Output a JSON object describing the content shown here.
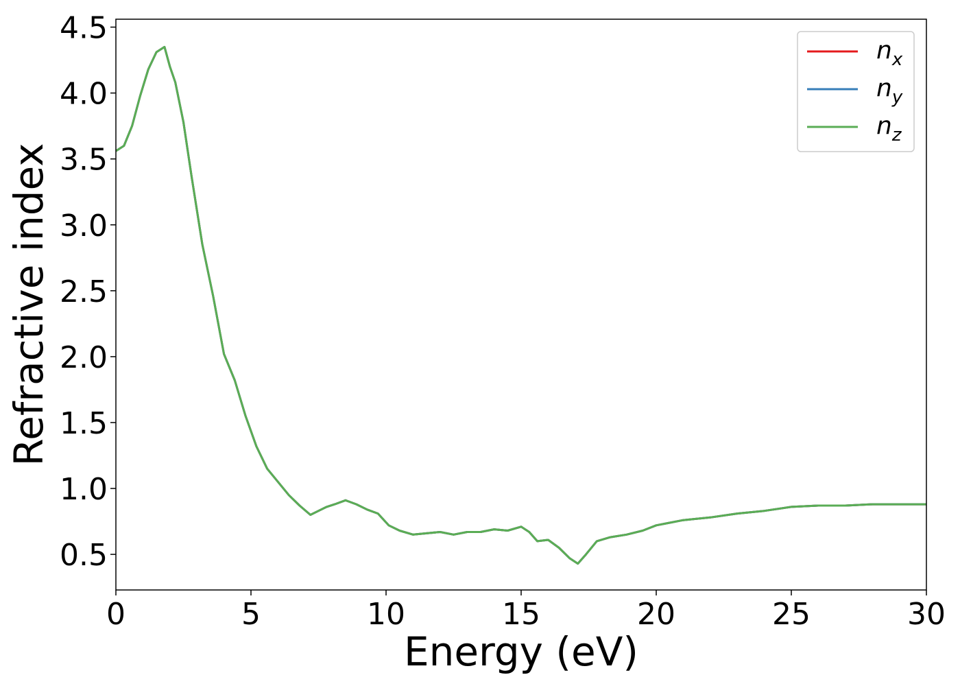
{
  "chart_data": {
    "type": "line",
    "xlabel": "Energy (eV)",
    "ylabel": "Refractive index",
    "xlim": [
      0,
      30
    ],
    "ylim": [
      0.23,
      4.56
    ],
    "xticks": [
      0,
      5,
      10,
      15,
      20,
      25,
      30
    ],
    "yticks": [
      0.5,
      1.0,
      1.5,
      2.0,
      2.5,
      3.0,
      3.5,
      4.0,
      4.5
    ],
    "grid": false,
    "legend_position": "top-right",
    "series": [
      {
        "name": "n",
        "subscript": "x",
        "color": "#e41a1c",
        "x": [
          0,
          0.3,
          0.6,
          0.9,
          1.2,
          1.5,
          1.8,
          2.0,
          2.2,
          2.5,
          2.8,
          3.2,
          3.6,
          4.0,
          4.4,
          4.8,
          5.2,
          5.6,
          6.0,
          6.4,
          6.8,
          7.2,
          7.5,
          7.8,
          8.1,
          8.5,
          8.9,
          9.3,
          9.7,
          10.1,
          10.5,
          11.0,
          11.5,
          12.0,
          12.5,
          13.0,
          13.5,
          14.0,
          14.5,
          15.0,
          15.3,
          15.6,
          16.0,
          16.4,
          16.8,
          17.1,
          17.4,
          17.8,
          18.3,
          18.9,
          19.5,
          20.0,
          20.5,
          21.0,
          22.0,
          23.0,
          24.0,
          25.0,
          26.0,
          27.0,
          28.0,
          29.0,
          30.0
        ],
        "y": [
          3.56,
          3.6,
          3.75,
          3.98,
          4.18,
          4.31,
          4.35,
          4.2,
          4.08,
          3.78,
          3.37,
          2.85,
          2.46,
          2.02,
          1.82,
          1.55,
          1.32,
          1.15,
          1.05,
          0.95,
          0.87,
          0.8,
          0.83,
          0.86,
          0.88,
          0.91,
          0.88,
          0.84,
          0.81,
          0.72,
          0.68,
          0.65,
          0.66,
          0.67,
          0.65,
          0.67,
          0.67,
          0.69,
          0.68,
          0.71,
          0.67,
          0.6,
          0.61,
          0.55,
          0.47,
          0.43,
          0.5,
          0.6,
          0.63,
          0.65,
          0.68,
          0.72,
          0.74,
          0.76,
          0.78,
          0.81,
          0.83,
          0.86,
          0.87,
          0.87,
          0.88,
          0.88,
          0.88
        ]
      },
      {
        "name": "n",
        "subscript": "y",
        "color": "#377eb8",
        "x": [
          0,
          0.3,
          0.6,
          0.9,
          1.2,
          1.5,
          1.8,
          2.0,
          2.2,
          2.5,
          2.8,
          3.2,
          3.6,
          4.0,
          4.4,
          4.8,
          5.2,
          5.6,
          6.0,
          6.4,
          6.8,
          7.2,
          7.5,
          7.8,
          8.1,
          8.5,
          8.9,
          9.3,
          9.7,
          10.1,
          10.5,
          11.0,
          11.5,
          12.0,
          12.5,
          13.0,
          13.5,
          14.0,
          14.5,
          15.0,
          15.3,
          15.6,
          16.0,
          16.4,
          16.8,
          17.1,
          17.4,
          17.8,
          18.3,
          18.9,
          19.5,
          20.0,
          20.5,
          21.0,
          22.0,
          23.0,
          24.0,
          25.0,
          26.0,
          27.0,
          28.0,
          29.0,
          30.0
        ],
        "y": [
          3.56,
          3.6,
          3.75,
          3.98,
          4.18,
          4.31,
          4.35,
          4.2,
          4.08,
          3.78,
          3.37,
          2.85,
          2.46,
          2.02,
          1.82,
          1.55,
          1.32,
          1.15,
          1.05,
          0.95,
          0.87,
          0.8,
          0.83,
          0.86,
          0.88,
          0.91,
          0.88,
          0.84,
          0.81,
          0.72,
          0.68,
          0.65,
          0.66,
          0.67,
          0.65,
          0.67,
          0.67,
          0.69,
          0.68,
          0.71,
          0.67,
          0.6,
          0.61,
          0.55,
          0.47,
          0.43,
          0.5,
          0.6,
          0.63,
          0.65,
          0.68,
          0.72,
          0.74,
          0.76,
          0.78,
          0.81,
          0.83,
          0.86,
          0.87,
          0.87,
          0.88,
          0.88,
          0.88
        ]
      },
      {
        "name": "n",
        "subscript": "z",
        "color": "#5aad55",
        "x": [
          0,
          0.3,
          0.6,
          0.9,
          1.2,
          1.5,
          1.8,
          2.0,
          2.2,
          2.5,
          2.8,
          3.2,
          3.6,
          4.0,
          4.4,
          4.8,
          5.2,
          5.6,
          6.0,
          6.4,
          6.8,
          7.2,
          7.5,
          7.8,
          8.1,
          8.5,
          8.9,
          9.3,
          9.7,
          10.1,
          10.5,
          11.0,
          11.5,
          12.0,
          12.5,
          13.0,
          13.5,
          14.0,
          14.5,
          15.0,
          15.3,
          15.6,
          16.0,
          16.4,
          16.8,
          17.1,
          17.4,
          17.8,
          18.3,
          18.9,
          19.5,
          20.0,
          20.5,
          21.0,
          22.0,
          23.0,
          24.0,
          25.0,
          26.0,
          27.0,
          28.0,
          29.0,
          30.0
        ],
        "y": [
          3.56,
          3.6,
          3.75,
          3.98,
          4.18,
          4.31,
          4.35,
          4.2,
          4.08,
          3.78,
          3.37,
          2.85,
          2.46,
          2.02,
          1.82,
          1.55,
          1.32,
          1.15,
          1.05,
          0.95,
          0.87,
          0.8,
          0.83,
          0.86,
          0.88,
          0.91,
          0.88,
          0.84,
          0.81,
          0.72,
          0.68,
          0.65,
          0.66,
          0.67,
          0.65,
          0.67,
          0.67,
          0.69,
          0.68,
          0.71,
          0.67,
          0.6,
          0.61,
          0.55,
          0.47,
          0.43,
          0.5,
          0.6,
          0.63,
          0.65,
          0.68,
          0.72,
          0.74,
          0.76,
          0.78,
          0.81,
          0.83,
          0.86,
          0.87,
          0.87,
          0.88,
          0.88,
          0.88
        ]
      }
    ]
  }
}
